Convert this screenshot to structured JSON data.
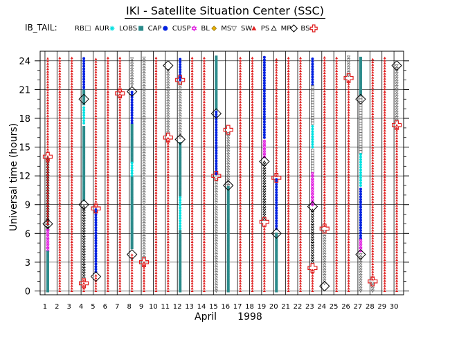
{
  "title": "IKI - Satellite Situation Center (SSC)",
  "chart_data": {
    "type": "scatter",
    "title": "IKI - Satellite Situation Center (SSC)",
    "subtitle": "IB_TAIL:",
    "xlabel": "April",
    "xlabel_year": "1998",
    "ylabel": "Universal time (hours)",
    "xlim": [
      0.6,
      30.8
    ],
    "ylim": [
      -0.4,
      25.0
    ],
    "x_ticks": [
      1,
      2,
      3,
      4,
      5,
      6,
      7,
      8,
      9,
      10,
      11,
      12,
      13,
      14,
      15,
      16,
      17,
      18,
      19,
      20,
      21,
      22,
      23,
      24,
      25,
      26,
      27,
      28,
      29,
      30
    ],
    "y_ticks": [
      0,
      3,
      6,
      9,
      12,
      15,
      18,
      21,
      24
    ],
    "grid": true,
    "legend": [
      {
        "code": "RB",
        "label": "RB",
        "symbol": "square",
        "color": "#707070"
      },
      {
        "code": "AUR",
        "label": "AUR",
        "symbol": "star",
        "color": "#00e0e0"
      },
      {
        "code": "LOBS",
        "label": "LOBS",
        "symbol": "square",
        "color": "#2a8a8a"
      },
      {
        "code": "CAP",
        "label": "CAP",
        "symbol": "dot",
        "color": "#0020e0"
      },
      {
        "code": "CUSP",
        "label": "CUSP",
        "symbol": "star6",
        "color": "#e020e0"
      },
      {
        "code": "BL",
        "label": "BL",
        "symbol": "diamond",
        "color": "#e8b000"
      },
      {
        "code": "MS",
        "label": "MS",
        "symbol": "tri-down",
        "color": "#707070"
      },
      {
        "code": "SW",
        "label": "SW",
        "symbol": "tri-up",
        "color": "#e02020"
      },
      {
        "code": "PS",
        "label": "PS",
        "symbol": "triangle",
        "color": "#000000"
      },
      {
        "code": "MP",
        "label": "MP",
        "symbol": "diamond",
        "color": "#000000"
      },
      {
        "code": "BS",
        "label": "BS",
        "symbol": "cross",
        "color": "#e02020"
      }
    ],
    "series": [
      {
        "day": 1,
        "segments": [
          [
            "SW",
            21.0,
            24.4
          ],
          [
            "SW",
            14.5,
            20.8
          ],
          [
            "PS",
            6.5,
            14.0
          ],
          [
            "CUSP",
            4.2,
            6.4
          ],
          [
            "LOBS",
            0,
            4.1
          ],
          [
            "SW",
            7.0,
            14.2
          ]
        ]
      },
      {
        "day": 2,
        "segments": [
          [
            "SW",
            0,
            24.4
          ]
        ]
      },
      {
        "day": 3,
        "segments": [
          [
            "SW",
            0,
            24.4
          ]
        ]
      },
      {
        "day": 4,
        "segments": [
          [
            "CAP",
            21.0,
            24.4
          ],
          [
            "LOBS",
            19.5,
            21.0
          ],
          [
            "AUR",
            17.5,
            19.3
          ],
          [
            "LOBS",
            9.5,
            17.3
          ],
          [
            "PS",
            1.5,
            9.0
          ],
          [
            "SW",
            0,
            1.3
          ]
        ]
      },
      {
        "day": 5,
        "segments": [
          [
            "SW",
            8.8,
            24.4
          ],
          [
            "CAP",
            2.0,
            8.5
          ],
          [
            "SW",
            0,
            1.8
          ]
        ]
      },
      {
        "day": 6,
        "segments": [
          [
            "SW",
            0,
            24.4
          ]
        ]
      },
      {
        "day": 7,
        "segments": [
          [
            "SW",
            0,
            24.4
          ]
        ]
      },
      {
        "day": 8,
        "segments": [
          [
            "MS",
            21.5,
            24.4
          ],
          [
            "CAP",
            17.5,
            21.0
          ],
          [
            "LOBS",
            13.5,
            17.3
          ],
          [
            "AUR",
            12.0,
            13.4
          ],
          [
            "LOBS",
            4.5,
            11.8
          ],
          [
            "SW",
            0,
            4.0
          ]
        ]
      },
      {
        "day": 9,
        "segments": [
          [
            "MS",
            3.5,
            24.4
          ],
          [
            "SW",
            0,
            3.1
          ]
        ]
      },
      {
        "day": 10,
        "segments": [
          [
            "SW",
            0,
            24.4
          ]
        ]
      },
      {
        "day": 11,
        "segments": [
          [
            "MS",
            16.5,
            23.2
          ],
          [
            "SW",
            0,
            16.0
          ]
        ]
      },
      {
        "day": 12,
        "segments": [
          [
            "CAP",
            22.0,
            24.4
          ],
          [
            "MS",
            16.0,
            21.8
          ],
          [
            "LOBS",
            10.0,
            15.6
          ],
          [
            "AUR",
            6.5,
            9.8
          ],
          [
            "LOBS",
            0,
            6.3
          ]
        ]
      },
      {
        "day": 13,
        "segments": [
          [
            "SW",
            0,
            24.4
          ]
        ]
      },
      {
        "day": 14,
        "segments": [
          [
            "SW",
            0,
            24.4
          ]
        ]
      },
      {
        "day": 15,
        "segments": [
          [
            "LOBS",
            19.0,
            24.4
          ],
          [
            "CAP",
            12.2,
            18.8
          ],
          [
            "MS",
            0,
            11.8
          ]
        ]
      },
      {
        "day": 16,
        "segments": [
          [
            "MS",
            11.0,
            16.6
          ],
          [
            "LOBS",
            0,
            10.8
          ]
        ]
      },
      {
        "day": 17,
        "segments": [
          [
            "SW",
            0,
            24.4
          ]
        ]
      },
      {
        "day": 18,
        "segments": [
          [
            "SW",
            0,
            24.4
          ]
        ]
      },
      {
        "day": 19,
        "segments": [
          [
            "CAP",
            16.0,
            24.4
          ],
          [
            "CUSP",
            14.0,
            15.8
          ],
          [
            "PS",
            7.5,
            13.6
          ],
          [
            "SW",
            0,
            7.0
          ]
        ]
      },
      {
        "day": 20,
        "segments": [
          [
            "SW",
            12.0,
            24.4
          ],
          [
            "CAP",
            6.5,
            11.8
          ],
          [
            "LOBS",
            0,
            6.0
          ]
        ]
      },
      {
        "day": 21,
        "segments": [
          [
            "SW",
            0,
            24.4
          ]
        ]
      },
      {
        "day": 22,
        "segments": [
          [
            "SW",
            0,
            24.4
          ]
        ]
      },
      {
        "day": 23,
        "segments": [
          [
            "CAP",
            21.5,
            24.4
          ],
          [
            "RB",
            17.5,
            21.3
          ],
          [
            "AUR",
            15.0,
            17.3
          ],
          [
            "RB",
            12.5,
            14.8
          ],
          [
            "CUSP",
            9.0,
            12.3
          ],
          [
            "PS",
            3.0,
            8.6
          ],
          [
            "SW",
            0,
            2.3
          ]
        ]
      },
      {
        "day": 24,
        "segments": [
          [
            "SW",
            6.8,
            24.4
          ],
          [
            "MS",
            0.8,
            6.4
          ]
        ]
      },
      {
        "day": 25,
        "segments": [
          [
            "SW",
            0,
            24.4
          ]
        ]
      },
      {
        "day": 26,
        "segments": [
          [
            "MS",
            22.5,
            24.4
          ],
          [
            "SW",
            0,
            22.0
          ]
        ]
      },
      {
        "day": 27,
        "segments": [
          [
            "LOBS",
            20.5,
            24.4
          ],
          [
            "RB",
            14.5,
            20.2
          ],
          [
            "AUR",
            11.0,
            14.3
          ],
          [
            "CAP",
            5.5,
            10.8
          ],
          [
            "CUSP",
            4.2,
            5.4
          ],
          [
            "MS",
            0,
            3.8
          ]
        ]
      },
      {
        "day": 28,
        "segments": [
          [
            "SW",
            1.2,
            24.4
          ],
          [
            "MS",
            0,
            1.0
          ]
        ]
      },
      {
        "day": 29,
        "segments": [
          [
            "SW",
            0,
            24.4
          ]
        ]
      },
      {
        "day": 30,
        "segments": [
          [
            "MS",
            17.8,
            23.5
          ],
          [
            "SW",
            0,
            17.3
          ]
        ]
      }
    ],
    "markers": [
      {
        "type": "MP",
        "day": 1,
        "t": 7.0
      },
      {
        "type": "BS",
        "day": 1,
        "t": 14.0
      },
      {
        "type": "MP",
        "day": 4,
        "t": 9.0
      },
      {
        "type": "BS",
        "day": 4,
        "t": 0.8
      },
      {
        "type": "MP",
        "day": 4,
        "t": 20.0
      },
      {
        "type": "BS",
        "day": 5,
        "t": 8.6
      },
      {
        "type": "MP",
        "day": 5,
        "t": 1.5
      },
      {
        "type": "BS",
        "day": 7,
        "t": 20.6
      },
      {
        "type": "MP",
        "day": 8,
        "t": 20.8
      },
      {
        "type": "MP",
        "day": 8,
        "t": 3.8
      },
      {
        "type": "BS",
        "day": 9,
        "t": 3.0
      },
      {
        "type": "MP",
        "day": 11,
        "t": 23.5
      },
      {
        "type": "BS",
        "day": 11,
        "t": 16.0
      },
      {
        "type": "BS",
        "day": 12,
        "t": 22.0
      },
      {
        "type": "MP",
        "day": 12,
        "t": 15.8
      },
      {
        "type": "MP",
        "day": 15,
        "t": 18.5
      },
      {
        "type": "BS",
        "day": 15,
        "t": 12.0
      },
      {
        "type": "BS",
        "day": 16,
        "t": 16.8
      },
      {
        "type": "MP",
        "day": 16,
        "t": 11.0
      },
      {
        "type": "MP",
        "day": 19,
        "t": 13.5
      },
      {
        "type": "BS",
        "day": 19,
        "t": 7.2
      },
      {
        "type": "BS",
        "day": 20,
        "t": 11.8
      },
      {
        "type": "MP",
        "day": 20,
        "t": 6.0
      },
      {
        "type": "MP",
        "day": 23,
        "t": 8.8
      },
      {
        "type": "BS",
        "day": 23,
        "t": 2.4
      },
      {
        "type": "BS",
        "day": 24,
        "t": 6.5
      },
      {
        "type": "MP",
        "day": 24,
        "t": 0.5
      },
      {
        "type": "BS",
        "day": 26,
        "t": 22.2
      },
      {
        "type": "MP",
        "day": 27,
        "t": 20.0
      },
      {
        "type": "MP",
        "day": 27,
        "t": 3.8
      },
      {
        "type": "BS",
        "day": 28,
        "t": 1.0
      },
      {
        "type": "MP",
        "day": 30,
        "t": 23.5
      },
      {
        "type": "BS",
        "day": 30,
        "t": 17.3
      }
    ]
  }
}
